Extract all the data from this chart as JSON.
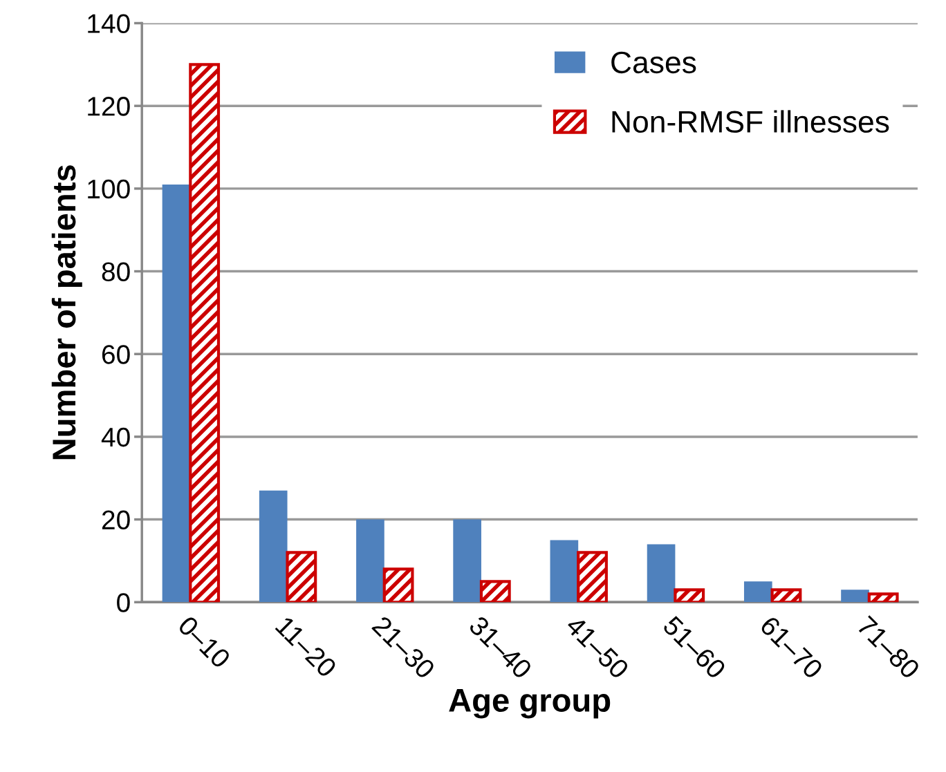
{
  "chart_data": {
    "type": "bar",
    "xlabel": "Age group",
    "ylabel": "Number of patients",
    "categories": [
      "0–10",
      "11–20",
      "21–30",
      "31–40",
      "41–50",
      "51–60",
      "61–70",
      "71–80"
    ],
    "series": [
      {
        "name": "Cases",
        "color": "#4f81bd",
        "values": [
          101,
          27,
          20,
          20,
          15,
          14,
          5,
          3
        ]
      },
      {
        "name": "Non-RMSF illnesses",
        "color": "#cc0000",
        "values": [
          130,
          12,
          8,
          5,
          12,
          3,
          3,
          2
        ]
      }
    ],
    "ylim": [
      0,
      140
    ],
    "yticks": [
      0,
      20,
      40,
      60,
      80,
      100,
      120,
      140
    ],
    "grid": "y",
    "legend": "top right"
  }
}
